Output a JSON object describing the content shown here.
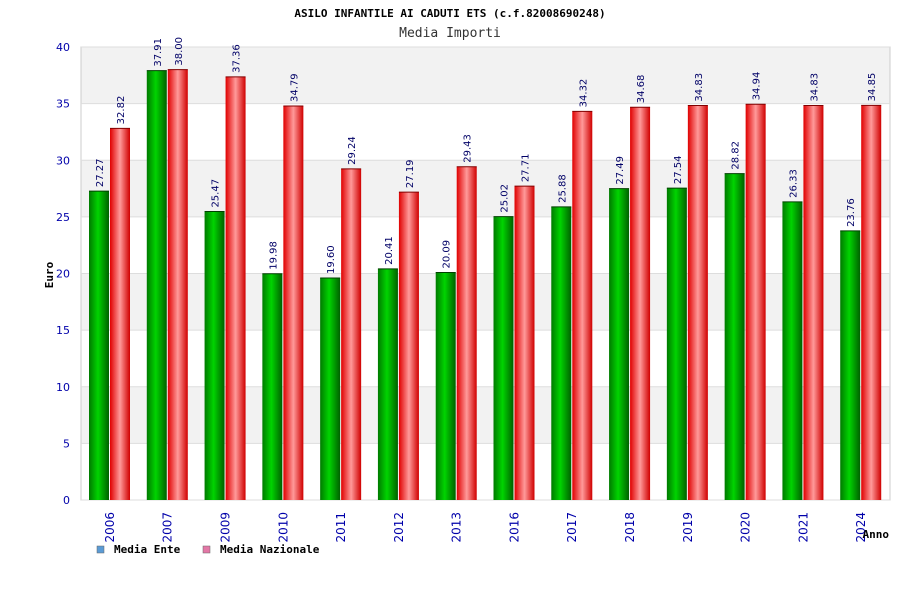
{
  "chart_data": {
    "type": "bar",
    "title": "ASILO INFANTILE AI CADUTI ETS (c.f.82008690248)",
    "subtitle": "Media Importi",
    "ylabel": "Euro",
    "xlabel": "Anno",
    "ylim": [
      0,
      40
    ],
    "yticks": [
      0,
      5,
      10,
      15,
      20,
      25,
      30,
      35,
      40
    ],
    "grid": true,
    "legend_position": "bottom-left",
    "categories": [
      "2006",
      "2007",
      "2009",
      "2010",
      "2011",
      "2012",
      "2013",
      "2016",
      "2017",
      "2018",
      "2019",
      "2020",
      "2021",
      "2024"
    ],
    "series": [
      {
        "name": "Media Ente",
        "legend_color": "#5b9bd5",
        "bar_color": "#00a000",
        "values": [
          27.27,
          37.91,
          25.47,
          19.98,
          19.6,
          20.41,
          20.09,
          25.02,
          25.88,
          27.49,
          27.54,
          28.82,
          26.33,
          23.76
        ],
        "labels": [
          "27.27",
          "37.91",
          "25.47",
          "19.98",
          "19.60",
          "20.41",
          "20.09",
          "25.02",
          "25.88",
          "27.49",
          "27.54",
          "28.82",
          "26.33",
          "23.76"
        ]
      },
      {
        "name": "Media Nazionale",
        "legend_color": "#e377a6",
        "bar_color": "#e00000",
        "values": [
          32.82,
          38.0,
          37.36,
          34.79,
          29.24,
          27.19,
          29.43,
          27.71,
          34.32,
          34.68,
          34.83,
          34.94,
          34.83,
          34.85
        ],
        "labels": [
          "32.82",
          "38.00",
          "37.36",
          "34.79",
          "29.24",
          "27.19",
          "29.43",
          "27.71",
          "34.32",
          "34.68",
          "34.83",
          "34.94",
          "34.83",
          "34.85"
        ]
      }
    ]
  }
}
